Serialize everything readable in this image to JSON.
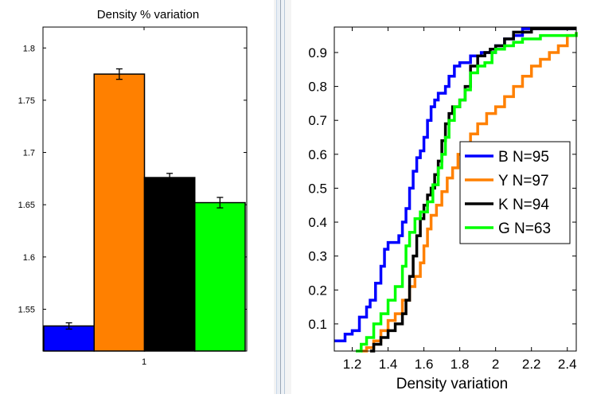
{
  "left_panel": {
    "chart_data": {
      "type": "bar",
      "title": "Density % variation",
      "categories": [
        "1"
      ],
      "series": [
        {
          "color": "#0000ff",
          "value": 1.534,
          "error": 0.003
        },
        {
          "color": "#ff8000",
          "value": 1.775,
          "error": 0.005
        },
        {
          "color": "#000000",
          "value": 1.676,
          "error": 0.004
        },
        {
          "color": "#00ff00",
          "value": 1.652,
          "error": 0.005
        }
      ],
      "ylim": [
        1.51,
        1.82
      ],
      "yticks": [
        1.55,
        1.6,
        1.65,
        1.7,
        1.75,
        1.8
      ],
      "ytick_labels": [
        "1.55",
        "1.6",
        "1.65",
        "1.7",
        "1.75",
        "1.8"
      ],
      "xtick_label": "1",
      "grid": false
    }
  },
  "right_panel": {
    "chart_data": {
      "type": "line",
      "xlabel": "Density variation",
      "ylabel": "",
      "xlim": [
        1.1,
        2.45
      ],
      "ylim": [
        0.02,
        0.975
      ],
      "xticks": [
        1.2,
        1.4,
        1.6,
        1.8,
        2,
        2.2,
        2.4
      ],
      "xtick_labels": [
        "1.2",
        "1.4",
        "1.6",
        "1.8",
        "2",
        "2.2",
        "2.4"
      ],
      "yticks": [
        0.1,
        0.2,
        0.3,
        0.4,
        0.5,
        0.6,
        0.7,
        0.8,
        0.9
      ],
      "ytick_labels": [
        "0.1",
        "0.2",
        "0.3",
        "0.4",
        "0.5",
        "0.6",
        "0.7",
        "0.8",
        "0.9"
      ],
      "legend_position": "right-middle",
      "grid": false,
      "series": [
        {
          "name": "B N=95",
          "color": "#0000ff",
          "points": [
            [
              1.1,
              0.05
            ],
            [
              1.15,
              0.05
            ],
            [
              1.16,
              0.07
            ],
            [
              1.2,
              0.08
            ],
            [
              1.24,
              0.12
            ],
            [
              1.28,
              0.15
            ],
            [
              1.3,
              0.17
            ],
            [
              1.33,
              0.22
            ],
            [
              1.36,
              0.27
            ],
            [
              1.38,
              0.32
            ],
            [
              1.4,
              0.34
            ],
            [
              1.44,
              0.34
            ],
            [
              1.46,
              0.36
            ],
            [
              1.48,
              0.4
            ],
            [
              1.5,
              0.44
            ],
            [
              1.52,
              0.5
            ],
            [
              1.54,
              0.55
            ],
            [
              1.56,
              0.59
            ],
            [
              1.58,
              0.61
            ],
            [
              1.6,
              0.65
            ],
            [
              1.62,
              0.7
            ],
            [
              1.64,
              0.74
            ],
            [
              1.66,
              0.76
            ],
            [
              1.68,
              0.78
            ],
            [
              1.7,
              0.78
            ],
            [
              1.72,
              0.8
            ],
            [
              1.74,
              0.83
            ],
            [
              1.77,
              0.86
            ],
            [
              1.8,
              0.87
            ],
            [
              1.84,
              0.87
            ],
            [
              1.86,
              0.89
            ],
            [
              1.9,
              0.89
            ],
            [
              1.92,
              0.9
            ],
            [
              1.96,
              0.9
            ],
            [
              2.0,
              0.92
            ],
            [
              2.05,
              0.94
            ],
            [
              2.1,
              0.95
            ],
            [
              2.15,
              0.97
            ],
            [
              2.45,
              0.97
            ]
          ]
        },
        {
          "name": "Y N=97",
          "color": "#ff8000",
          "points": [
            [
              1.25,
              0.02
            ],
            [
              1.28,
              0.03
            ],
            [
              1.32,
              0.05
            ],
            [
              1.36,
              0.08
            ],
            [
              1.4,
              0.11
            ],
            [
              1.44,
              0.13
            ],
            [
              1.48,
              0.17
            ],
            [
              1.52,
              0.21
            ],
            [
              1.55,
              0.24
            ],
            [
              1.58,
              0.28
            ],
            [
              1.6,
              0.33
            ],
            [
              1.62,
              0.38
            ],
            [
              1.64,
              0.42
            ],
            [
              1.67,
              0.45
            ],
            [
              1.7,
              0.49
            ],
            [
              1.73,
              0.53
            ],
            [
              1.76,
              0.56
            ],
            [
              1.79,
              0.6
            ],
            [
              1.82,
              0.63
            ],
            [
              1.86,
              0.66
            ],
            [
              1.9,
              0.69
            ],
            [
              1.95,
              0.72
            ],
            [
              2.0,
              0.74
            ],
            [
              2.05,
              0.77
            ],
            [
              2.1,
              0.8
            ],
            [
              2.15,
              0.83
            ],
            [
              2.2,
              0.86
            ],
            [
              2.25,
              0.88
            ],
            [
              2.3,
              0.9
            ],
            [
              2.35,
              0.92
            ],
            [
              2.4,
              0.95
            ],
            [
              2.45,
              0.96
            ]
          ]
        },
        {
          "name": "K N=94",
          "color": "#000000",
          "points": [
            [
              1.3,
              0.02
            ],
            [
              1.32,
              0.04
            ],
            [
              1.36,
              0.06
            ],
            [
              1.4,
              0.08
            ],
            [
              1.44,
              0.1
            ],
            [
              1.48,
              0.13
            ],
            [
              1.5,
              0.17
            ],
            [
              1.52,
              0.24
            ],
            [
              1.54,
              0.3
            ],
            [
              1.56,
              0.36
            ],
            [
              1.58,
              0.41
            ],
            [
              1.6,
              0.45
            ],
            [
              1.62,
              0.48
            ],
            [
              1.64,
              0.5
            ],
            [
              1.66,
              0.54
            ],
            [
              1.68,
              0.58
            ],
            [
              1.7,
              0.64
            ],
            [
              1.72,
              0.69
            ],
            [
              1.74,
              0.72
            ],
            [
              1.76,
              0.74
            ],
            [
              1.8,
              0.76
            ],
            [
              1.83,
              0.8
            ],
            [
              1.86,
              0.86
            ],
            [
              1.9,
              0.89
            ],
            [
              1.94,
              0.9
            ],
            [
              1.97,
              0.91
            ],
            [
              2.0,
              0.92
            ],
            [
              2.05,
              0.94
            ],
            [
              2.1,
              0.96
            ],
            [
              2.2,
              0.97
            ],
            [
              2.45,
              0.97
            ]
          ]
        },
        {
          "name": "G N=63",
          "color": "#00ff00",
          "points": [
            [
              1.22,
              0.02
            ],
            [
              1.25,
              0.04
            ],
            [
              1.28,
              0.06
            ],
            [
              1.32,
              0.1
            ],
            [
              1.36,
              0.13
            ],
            [
              1.4,
              0.17
            ],
            [
              1.44,
              0.21
            ],
            [
              1.48,
              0.27
            ],
            [
              1.5,
              0.33
            ],
            [
              1.52,
              0.37
            ],
            [
              1.55,
              0.41
            ],
            [
              1.58,
              0.43
            ],
            [
              1.62,
              0.46
            ],
            [
              1.65,
              0.51
            ],
            [
              1.68,
              0.56
            ],
            [
              1.7,
              0.6
            ],
            [
              1.72,
              0.65
            ],
            [
              1.74,
              0.7
            ],
            [
              1.77,
              0.74
            ],
            [
              1.8,
              0.76
            ],
            [
              1.83,
              0.79
            ],
            [
              1.86,
              0.84
            ],
            [
              1.9,
              0.86
            ],
            [
              1.94,
              0.87
            ],
            [
              1.98,
              0.9
            ],
            [
              2.0,
              0.91
            ],
            [
              2.05,
              0.92
            ],
            [
              2.1,
              0.93
            ],
            [
              2.15,
              0.94
            ],
            [
              2.2,
              0.94
            ],
            [
              2.25,
              0.95
            ],
            [
              2.45,
              0.96
            ]
          ]
        }
      ]
    }
  }
}
